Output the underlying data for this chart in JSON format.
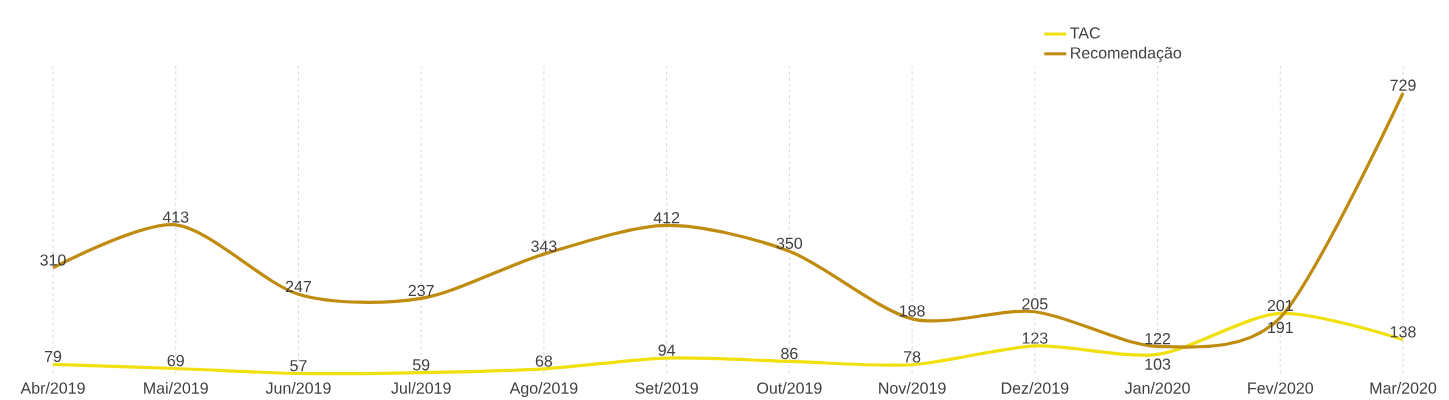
{
  "chart_data": {
    "type": "line",
    "categories": [
      "Abr/2019",
      "Mai/2019",
      "Jun/2019",
      "Jul/2019",
      "Ago/2019",
      "Set/2019",
      "Out/2019",
      "Nov/2019",
      "Dez/2019",
      "Jan/2020",
      "Fev/2020",
      "Mar/2020"
    ],
    "series": [
      {
        "name": "TAC",
        "color": "#f0e010",
        "values": [
          79,
          69,
          57,
          59,
          68,
          94,
          86,
          78,
          123,
          103,
          201,
          138
        ]
      },
      {
        "name": "Recomendação",
        "color": "#c08c10",
        "values": [
          310,
          413,
          247,
          237,
          343,
          412,
          350,
          188,
          205,
          122,
          191,
          729
        ]
      }
    ],
    "grid": "x",
    "legend": "top right",
    "data_labels": true,
    "marker": "none",
    "line_style": "solid",
    "tick_labels": "x"
  }
}
